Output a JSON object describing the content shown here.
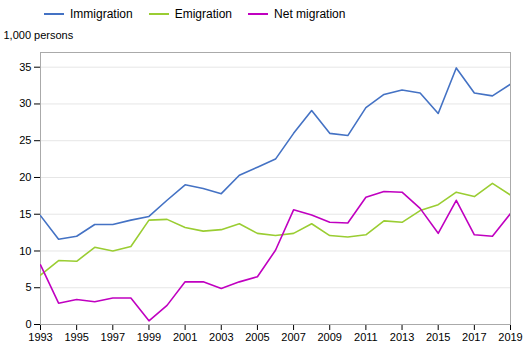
{
  "chart_data": {
    "type": "line",
    "ylabel": "1,000 persons",
    "x": [
      1993,
      1994,
      1995,
      1996,
      1997,
      1998,
      1999,
      2000,
      2001,
      2002,
      2003,
      2004,
      2005,
      2006,
      2007,
      2008,
      2009,
      2010,
      2011,
      2012,
      2013,
      2014,
      2015,
      2016,
      2017,
      2018,
      2019
    ],
    "series": [
      {
        "name": "Immigration",
        "color": "#4472c4",
        "values": [
          14.8,
          11.6,
          12.0,
          13.6,
          13.6,
          14.2,
          14.7,
          16.9,
          19.0,
          18.5,
          17.8,
          20.3,
          21.4,
          22.5,
          26.0,
          29.1,
          26.0,
          25.7,
          29.5,
          31.3,
          31.9,
          31.5,
          28.7,
          34.9,
          31.5,
          31.1,
          32.7
        ]
      },
      {
        "name": "Emigration",
        "color": "#9acd32",
        "values": [
          6.7,
          8.7,
          8.6,
          10.5,
          10.0,
          10.6,
          14.2,
          14.3,
          13.2,
          12.7,
          12.9,
          13.7,
          12.4,
          12.1,
          12.4,
          13.7,
          12.1,
          11.9,
          12.2,
          14.1,
          13.9,
          15.5,
          16.3,
          18.0,
          17.4,
          19.2,
          17.6
        ]
      },
      {
        "name": "Net migration",
        "color": "#c000c0",
        "values": [
          8.1,
          2.9,
          3.4,
          3.1,
          3.6,
          3.6,
          0.5,
          2.6,
          5.8,
          5.8,
          4.9,
          5.8,
          6.5,
          10.1,
          15.6,
          14.9,
          13.9,
          13.8,
          17.3,
          18.1,
          18.0,
          15.8,
          12.4,
          16.9,
          12.2,
          12.0,
          15.1
        ]
      }
    ],
    "xlim": [
      1993,
      2019
    ],
    "xticks": [
      1993,
      1995,
      1997,
      1999,
      2001,
      2003,
      2005,
      2007,
      2009,
      2011,
      2013,
      2015,
      2017,
      2019
    ],
    "ylim": [
      0,
      37
    ],
    "yticks": [
      0,
      5,
      10,
      15,
      20,
      25,
      30,
      35
    ],
    "grid": true,
    "legend": "upper left"
  }
}
